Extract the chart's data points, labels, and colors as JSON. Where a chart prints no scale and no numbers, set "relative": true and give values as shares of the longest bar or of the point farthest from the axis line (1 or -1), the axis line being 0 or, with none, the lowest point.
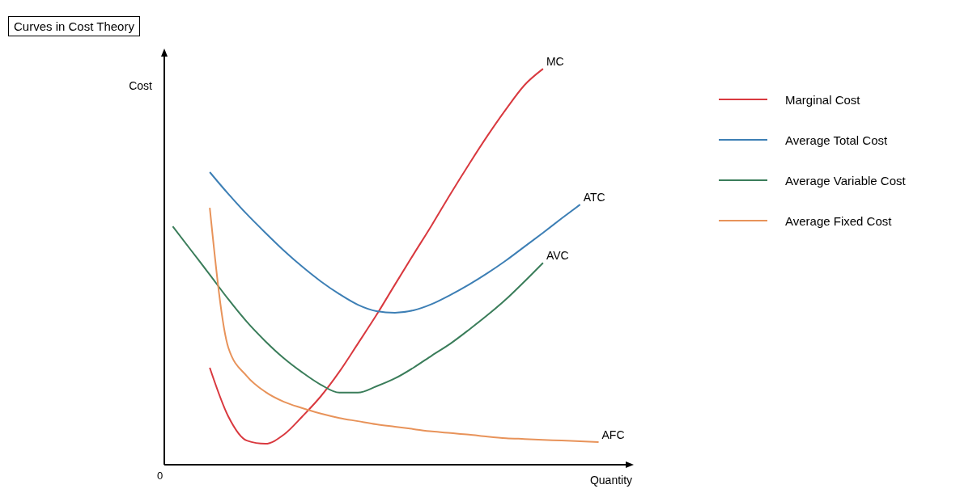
{
  "chart_data": {
    "type": "line",
    "title": "Curves in Cost Theory",
    "xlabel": "Quantity",
    "ylabel": "Cost",
    "relative": true,
    "legend": "right",
    "marker": "none",
    "line_style": "solid",
    "grid": false,
    "categories": [
      null,
      null,
      null,
      null,
      null,
      null,
      null,
      null,
      null,
      null,
      null,
      null,
      null,
      null,
      null,
      null,
      null,
      null,
      null,
      null,
      null,
      null,
      null,
      null
    ],
    "series": [
      {
        "name": "Marginal Cost",
        "color": "#d9393f",
        "values": [
          null,
          null,
          0.245,
          0.122,
          0.061,
          0.053,
          0.076,
          0.122,
          0.173,
          0.235,
          0.306,
          0.378,
          0.455,
          0.531,
          0.606,
          0.684,
          0.759,
          0.831,
          0.898,
          0.959,
          1.0,
          null,
          null,
          null
        ]
      },
      {
        "name": "Average Total Cost",
        "color": "#3d7fb5",
        "values": [
          null,
          null,
          0.739,
          0.684,
          0.633,
          0.586,
          0.541,
          0.5,
          0.463,
          0.431,
          0.404,
          0.388,
          0.384,
          0.39,
          0.406,
          0.429,
          0.455,
          0.484,
          0.516,
          0.551,
          0.586,
          0.622,
          0.657,
          null
        ]
      },
      {
        "name": "Average Variable Cost",
        "color": "#3a7d5a",
        "values": [
          0.602,
          0.541,
          0.48,
          0.418,
          0.361,
          0.312,
          0.269,
          0.233,
          0.202,
          0.182,
          0.182,
          0.198,
          0.218,
          0.245,
          0.276,
          0.306,
          0.341,
          0.378,
          0.418,
          0.463,
          0.51,
          null,
          null,
          null
        ]
      },
      {
        "name": "Average Fixed Cost",
        "color": "#e8935a",
        "values": [
          null,
          null,
          0.649,
          0.296,
          0.224,
          0.184,
          0.159,
          0.143,
          0.129,
          0.118,
          0.11,
          0.102,
          0.096,
          0.09,
          0.084,
          0.08,
          0.076,
          0.071,
          0.067,
          0.065,
          0.063,
          0.061,
          0.059,
          0.057
        ]
      }
    ],
    "annotations": [
      "MC",
      "ATC",
      "AVC",
      "AFC",
      "0"
    ]
  }
}
